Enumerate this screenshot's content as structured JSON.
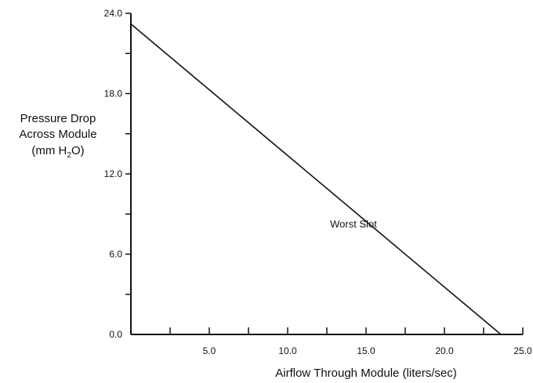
{
  "chart_data": {
    "type": "line",
    "title": "",
    "xlabel": "Airflow Through Module (liters/sec)",
    "ylabel_lines": [
      "Pressure Drop",
      "Across Module"
    ],
    "ylabel_unit": {
      "prefix": "(mm H",
      "subscript": "2",
      "suffix": "O)"
    },
    "xlim": [
      0,
      25
    ],
    "ylim": [
      0,
      24
    ],
    "x_ticks": [
      0,
      2.5,
      5,
      7.5,
      10,
      12.5,
      15,
      17.5,
      20,
      22.5,
      25
    ],
    "x_tick_labels": [
      {
        "value": 5,
        "label": "5.0"
      },
      {
        "value": 10,
        "label": "10.0"
      },
      {
        "value": 15,
        "label": "15.0"
      },
      {
        "value": 20,
        "label": "20.0"
      },
      {
        "value": 25,
        "label": "25.0"
      }
    ],
    "y_ticks": [
      0,
      3,
      6,
      9,
      12,
      15,
      18,
      21,
      24
    ],
    "y_tick_labels": [
      {
        "value": 0,
        "label": "0.0"
      },
      {
        "value": 6,
        "label": "6.0"
      },
      {
        "value": 12,
        "label": "12.0"
      },
      {
        "value": 18,
        "label": "18.0"
      },
      {
        "value": 24,
        "label": "24.0"
      }
    ],
    "grid": false,
    "series": [
      {
        "name": "Worst Slot",
        "x": [
          0,
          23.6
        ],
        "y": [
          23.2,
          0
        ]
      }
    ],
    "annotations": [
      {
        "text": "Worst Slot",
        "x": 14.2,
        "y": 8.0
      }
    ]
  }
}
